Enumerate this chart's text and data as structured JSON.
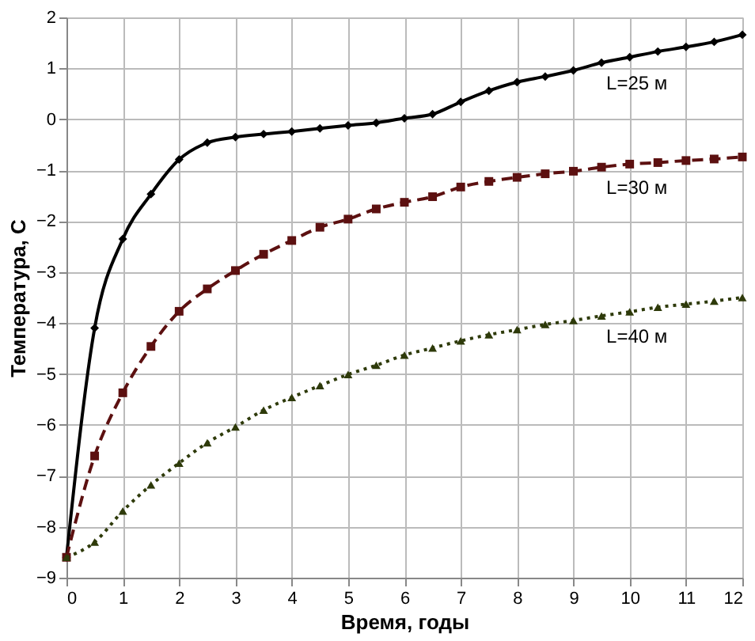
{
  "chart_data": {
    "type": "line",
    "xlabel": "Время, годы",
    "ylabel": "Температура, С",
    "x": [
      0,
      0.5,
      1,
      1.5,
      2,
      2.5,
      3,
      3.5,
      4,
      4.5,
      5,
      5.5,
      6,
      6.5,
      7,
      7.5,
      8,
      8.5,
      9,
      9.5,
      10,
      10.5,
      11,
      11.5,
      12
    ],
    "series": [
      {
        "name": "L=25 м",
        "color": "#000000",
        "marker": "diamond",
        "line_style": "solid",
        "values": [
          -8.6,
          -4.1,
          -2.35,
          -1.47,
          -0.79,
          -0.46,
          -0.35,
          -0.29,
          -0.24,
          -0.18,
          -0.12,
          -0.07,
          0.02,
          0.1,
          0.34,
          0.56,
          0.73,
          0.84,
          0.96,
          1.11,
          1.22,
          1.33,
          1.42,
          1.52,
          1.66
        ]
      },
      {
        "name": "L=30 м",
        "color": "#5c1010",
        "marker": "square",
        "line_style": "dashed",
        "values": [
          -8.6,
          -6.61,
          -5.37,
          -4.46,
          -3.77,
          -3.33,
          -2.97,
          -2.65,
          -2.38,
          -2.12,
          -1.96,
          -1.76,
          -1.63,
          -1.52,
          -1.33,
          -1.22,
          -1.14,
          -1.07,
          -1.02,
          -0.94,
          -0.88,
          -0.85,
          -0.81,
          -0.78,
          -0.74
        ]
      },
      {
        "name": "L=40 м",
        "color": "#2e3a0a",
        "marker": "triangle",
        "line_style": "dotted",
        "values": [
          -8.6,
          -8.3,
          -7.69,
          -7.18,
          -6.75,
          -6.35,
          -6.04,
          -5.71,
          -5.46,
          -5.23,
          -5.01,
          -4.83,
          -4.63,
          -4.49,
          -4.35,
          -4.23,
          -4.13,
          -4.03,
          -3.95,
          -3.86,
          -3.78,
          -3.69,
          -3.63,
          -3.57,
          -3.5
        ]
      }
    ],
    "xlim": [
      0,
      12
    ],
    "xticks": [
      0,
      1,
      2,
      3,
      4,
      5,
      6,
      7,
      8,
      9,
      10,
      11,
      12
    ],
    "ylim": [
      -9,
      2
    ],
    "yticks": [
      -9,
      -8,
      -7,
      -6,
      -5,
      -4,
      -3,
      -2,
      -1,
      0,
      1,
      2
    ],
    "grid": true
  }
}
